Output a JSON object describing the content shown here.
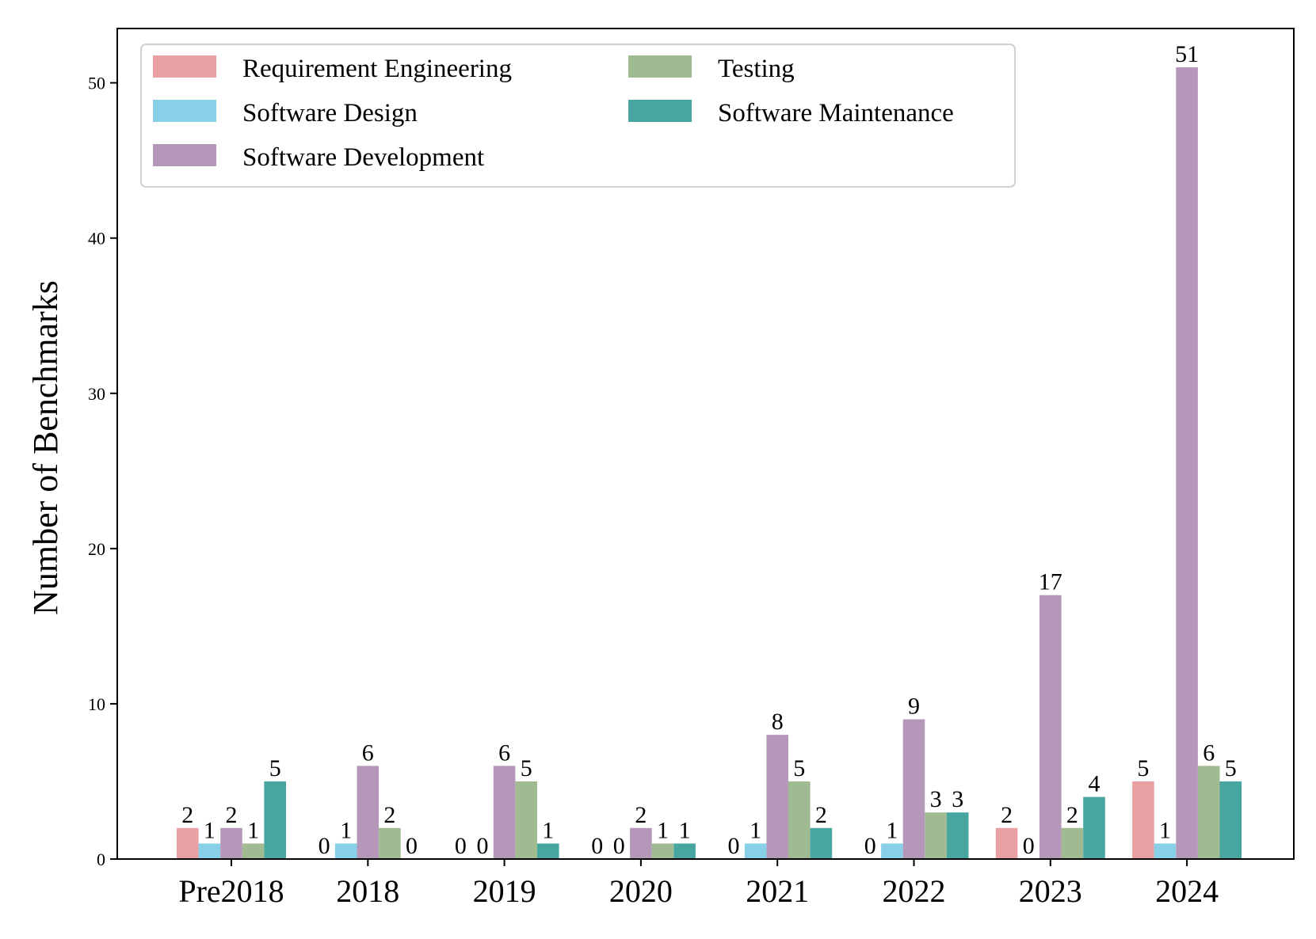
{
  "chart_data": {
    "type": "bar",
    "title": "",
    "xlabel": "",
    "ylabel": "Number of Benchmarks",
    "ylim": [
      0,
      53.5
    ],
    "yticks": [
      0,
      10,
      20,
      30,
      40,
      50
    ],
    "grid": false,
    "legend_position": "top-left",
    "categories": [
      "Pre2018",
      "2018",
      "2019",
      "2020",
      "2021",
      "2022",
      "2023",
      "2024"
    ],
    "series": [
      {
        "name": "Requirement Engineering",
        "color": "#E8A0A2",
        "values": [
          2,
          0,
          0,
          0,
          0,
          0,
          2,
          5
        ]
      },
      {
        "name": "Software Design",
        "color": "#88D0E8",
        "values": [
          1,
          1,
          0,
          0,
          1,
          1,
          0,
          1
        ]
      },
      {
        "name": "Software Development",
        "color": "#B597B9",
        "values": [
          2,
          6,
          6,
          2,
          8,
          9,
          17,
          51
        ]
      },
      {
        "name": "Testing",
        "color": "#A0BA92",
        "values": [
          1,
          2,
          5,
          1,
          5,
          3,
          2,
          6
        ]
      },
      {
        "name": "Software Maintenance",
        "color": "#48A6A1",
        "values": [
          5,
          0,
          1,
          1,
          2,
          3,
          4,
          5
        ]
      }
    ]
  }
}
